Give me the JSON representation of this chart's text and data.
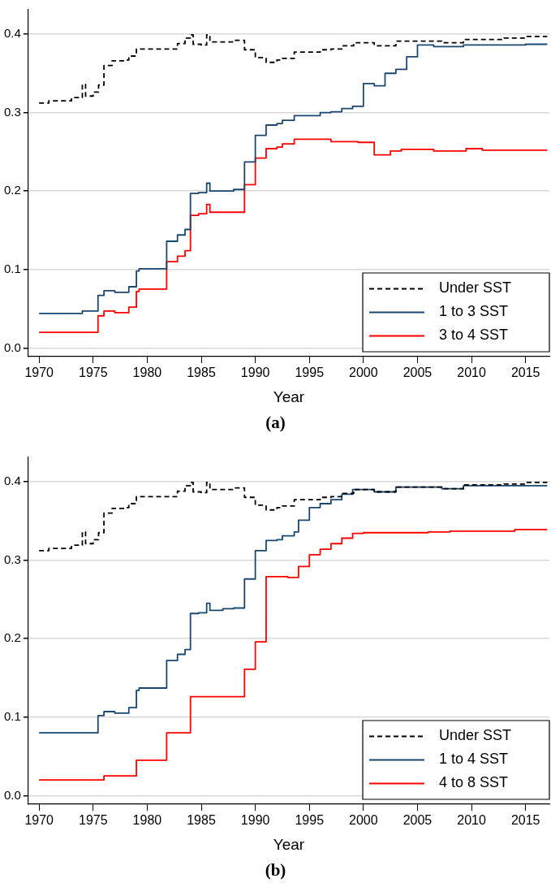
{
  "chart_data": [
    {
      "type": "step",
      "xlabel": "Year",
      "annotations": [
        "(a)"
      ],
      "xlim": [
        1969,
        2017.2
      ],
      "xticks": [
        1970,
        1975,
        1980,
        1985,
        1990,
        1995,
        2000,
        2005,
        2010,
        2015
      ],
      "ylim": [
        -0.011,
        0.431
      ],
      "yticks": [
        {
          "value": 0,
          "label": "0.0"
        },
        {
          "value": 0.1,
          "label": "0.1"
        },
        {
          "value": 0.2,
          "label": "0.2"
        },
        {
          "value": 0.3,
          "label": "0.3"
        },
        {
          "value": 0.4,
          "label": "0.4"
        }
      ],
      "grid": "y",
      "legend": "bottom right",
      "marker": "none",
      "series": [
        {
          "name": "Under SST",
          "color": "#000000",
          "line_style": "dashed",
          "x": [
            1970,
            1970.9,
            1973,
            1974,
            1974.3,
            1975,
            1975.5,
            1976,
            1976.75,
            1978,
            1978.3,
            1979,
            1982.8,
            1983.5,
            1984,
            1984.25,
            1985,
            1985.5,
            1985.8,
            1988,
            1989,
            1990,
            1991,
            1992,
            1992.5,
            1993.6,
            1996,
            1997,
            1998,
            1999.1,
            2001,
            2003,
            2005.25,
            2007.25,
            2009.25,
            2013,
            2015,
            2017
          ],
          "values": [
            0.312,
            0.315,
            0.319,
            0.336,
            0.321,
            0.326,
            0.335,
            0.36,
            0.366,
            0.367,
            0.372,
            0.381,
            0.388,
            0.395,
            0.399,
            0.387,
            0.386,
            0.399,
            0.39,
            0.392,
            0.38,
            0.37,
            0.364,
            0.367,
            0.369,
            0.377,
            0.38,
            0.381,
            0.385,
            0.389,
            0.385,
            0.391,
            0.391,
            0.389,
            0.393,
            0.395,
            0.397,
            0.397
          ]
        },
        {
          "name": "1 to 3 SST",
          "color": "#1a476f",
          "line_style": "solid",
          "x": [
            1970,
            1974,
            1975.45,
            1976,
            1977,
            1978.3,
            1979,
            1979.25,
            1981.8,
            1982.8,
            1983.5,
            1984,
            1984.75,
            1985.5,
            1985.8,
            1988,
            1989,
            1990,
            1991,
            1992,
            1992.5,
            1993.6,
            1996,
            1997,
            1998,
            1999,
            2000,
            2001,
            2002,
            2003,
            2004,
            2005,
            2006.5,
            2009.25,
            2015,
            2017
          ],
          "values": [
            0.044,
            0.047,
            0.067,
            0.073,
            0.071,
            0.078,
            0.098,
            0.101,
            0.136,
            0.144,
            0.151,
            0.197,
            0.198,
            0.21,
            0.2,
            0.202,
            0.237,
            0.271,
            0.284,
            0.286,
            0.29,
            0.296,
            0.3,
            0.301,
            0.305,
            0.308,
            0.337,
            0.334,
            0.35,
            0.355,
            0.371,
            0.386,
            0.384,
            0.386,
            0.387,
            0.387
          ]
        },
        {
          "name": "3 to 4 SST",
          "color": "#ff0000",
          "line_style": "solid",
          "x": [
            1970,
            1975.45,
            1976,
            1977,
            1978.3,
            1979,
            1979.25,
            1981.8,
            1982.8,
            1983.5,
            1984,
            1984.75,
            1985.5,
            1985.8,
            1989,
            1990,
            1991,
            1992,
            1992.5,
            1993.6,
            1997,
            1999.5,
            2001,
            2002.5,
            2003.5,
            2006.5,
            2009.5,
            2011,
            2017
          ],
          "values": [
            0.02,
            0.041,
            0.047,
            0.045,
            0.052,
            0.072,
            0.075,
            0.11,
            0.117,
            0.124,
            0.169,
            0.171,
            0.183,
            0.173,
            0.208,
            0.242,
            0.254,
            0.256,
            0.26,
            0.266,
            0.263,
            0.262,
            0.246,
            0.251,
            0.253,
            0.251,
            0.254,
            0.252,
            0.252
          ]
        }
      ]
    },
    {
      "type": "step",
      "xlabel": "Year",
      "annotations": [
        "(b)"
      ],
      "xlim": [
        1969,
        2017.2
      ],
      "xticks": [
        1970,
        1975,
        1980,
        1985,
        1990,
        1995,
        2000,
        2005,
        2010,
        2015
      ],
      "ylim": [
        -0.011,
        0.431
      ],
      "yticks": [
        {
          "value": 0,
          "label": "0.0"
        },
        {
          "value": 0.1,
          "label": "0.1"
        },
        {
          "value": 0.2,
          "label": "0.2"
        },
        {
          "value": 0.3,
          "label": "0.3"
        },
        {
          "value": 0.4,
          "label": "0.4"
        }
      ],
      "grid": "y",
      "legend": "bottom right",
      "marker": "none",
      "series": [
        {
          "name": "Under SST",
          "color": "#000000",
          "line_style": "dashed",
          "x": [
            1970,
            1970.9,
            1973,
            1974,
            1974.3,
            1975,
            1975.5,
            1976,
            1976.75,
            1978,
            1978.3,
            1979,
            1982.8,
            1983.5,
            1984,
            1984.25,
            1985,
            1985.5,
            1985.8,
            1988,
            1989,
            1990,
            1991,
            1992,
            1992.5,
            1993.6,
            1996,
            1997,
            1998,
            1999.1,
            2001,
            2003,
            2005.25,
            2007.25,
            2009.25,
            2013,
            2015,
            2017
          ],
          "values": [
            0.312,
            0.315,
            0.319,
            0.336,
            0.321,
            0.326,
            0.335,
            0.36,
            0.366,
            0.367,
            0.372,
            0.381,
            0.388,
            0.395,
            0.399,
            0.387,
            0.386,
            0.399,
            0.39,
            0.392,
            0.38,
            0.37,
            0.364,
            0.367,
            0.369,
            0.377,
            0.38,
            0.381,
            0.385,
            0.39,
            0.387,
            0.393,
            0.393,
            0.391,
            0.396,
            0.397,
            0.399,
            0.399
          ]
        },
        {
          "name": "1 to 4 SST",
          "color": "#1a476f",
          "line_style": "solid",
          "x": [
            1970,
            1975.45,
            1976,
            1977,
            1978.3,
            1979,
            1979.25,
            1981.8,
            1982.8,
            1983.5,
            1984,
            1984.75,
            1985.5,
            1985.8,
            1987,
            1988,
            1989,
            1990,
            1991,
            1992,
            1992.5,
            1993.6,
            1994,
            1995,
            1996,
            1997,
            1998,
            1999,
            2001,
            2003,
            2007.25,
            2009.25,
            2017
          ],
          "values": [
            0.08,
            0.102,
            0.107,
            0.105,
            0.112,
            0.134,
            0.137,
            0.172,
            0.18,
            0.186,
            0.232,
            0.233,
            0.245,
            0.236,
            0.238,
            0.239,
            0.276,
            0.312,
            0.325,
            0.326,
            0.331,
            0.336,
            0.351,
            0.367,
            0.372,
            0.377,
            0.384,
            0.39,
            0.387,
            0.393,
            0.391,
            0.395,
            0.395
          ]
        },
        {
          "name": "4 to 8 SST",
          "color": "#ff0000",
          "line_style": "solid",
          "x": [
            1970,
            1976,
            1979,
            1981.8,
            1984,
            1989,
            1990,
            1991,
            1993,
            1994,
            1995,
            1996,
            1997,
            1998,
            1999,
            2000,
            2006,
            2008,
            2014,
            2017
          ],
          "values": [
            0.02,
            0.025,
            0.045,
            0.08,
            0.126,
            0.161,
            0.196,
            0.279,
            0.278,
            0.292,
            0.307,
            0.314,
            0.321,
            0.328,
            0.334,
            0.335,
            0.336,
            0.337,
            0.339,
            0.339
          ]
        }
      ]
    }
  ]
}
